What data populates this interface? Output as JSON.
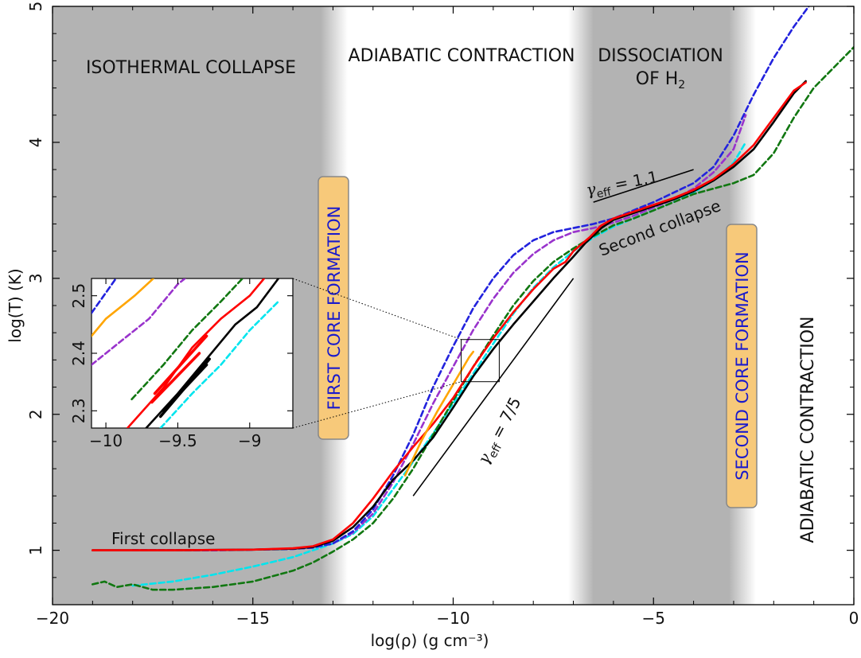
{
  "chart_data": {
    "type": "line",
    "xlabel": "log(ρ) (g cm⁻³)",
    "ylabel": "log(T) (K)",
    "xlim": [
      -20,
      0
    ],
    "ylim": [
      0.6,
      5
    ],
    "x_ticks": [
      "−20",
      "−15",
      "−10",
      "−5",
      "0"
    ],
    "y_ticks": [
      "1",
      "2",
      "3",
      "4",
      "5"
    ],
    "regions": [
      {
        "label": "ISOTHERMAL COLLAPSE",
        "from": -20,
        "to": -13.0,
        "shade": "gray"
      },
      {
        "label": "ADIABATIC CONTRACTION",
        "from": -13.0,
        "to": -7.0,
        "shade": "none"
      },
      {
        "label": "DISSOCIATION",
        "label2": "OF H",
        "label2_sub": "2",
        "from": -7.0,
        "to": -2.8,
        "shade": "gray"
      },
      {
        "label": "ADIABATIC CONTRACTION",
        "from": -2.8,
        "to": 0,
        "shade": "none",
        "orientation": "vertical"
      }
    ],
    "phase_boxes": [
      {
        "label": "FIRST CORE FORMATION",
        "x": -13.0,
        "y": 2.6
      },
      {
        "label": "SECOND CORE FORMATION",
        "x": -2.8,
        "y": 2.05
      }
    ],
    "annotations": {
      "first_collapse": "First collapse",
      "second_collapse": "Second collapse",
      "gamma_low_sym": "γ",
      "gamma_low_sub": "eff",
      "gamma_low_val": " = 7/5",
      "gamma_high_sym": "γ",
      "gamma_high_sub": "eff",
      "gamma_high_val": " = 1.1"
    },
    "reference_lines": [
      {
        "name": "slope-7/5",
        "points": [
          [
            -11.0,
            1.4
          ],
          [
            -7.0,
            3.0
          ]
        ]
      },
      {
        "name": "slope-1.1",
        "points": [
          [
            -6.5,
            3.56
          ],
          [
            -4.0,
            3.8
          ]
        ]
      }
    ],
    "series": [
      {
        "color": "#000000",
        "dash": false,
        "width": 2.6,
        "points": [
          [
            -19,
            1.0
          ],
          [
            -17,
            1.0
          ],
          [
            -15,
            1.005
          ],
          [
            -14,
            1.012
          ],
          [
            -13.5,
            1.025
          ],
          [
            -13,
            1.07
          ],
          [
            -12.5,
            1.17
          ],
          [
            -12,
            1.32
          ],
          [
            -11.5,
            1.52
          ],
          [
            -11,
            1.66
          ],
          [
            -10.5,
            1.83
          ],
          [
            -10,
            2.05
          ],
          [
            -9.5,
            2.28
          ],
          [
            -9,
            2.48
          ],
          [
            -8.5,
            2.66
          ],
          [
            -8,
            2.83
          ],
          [
            -7.5,
            3.0
          ],
          [
            -7,
            3.16
          ],
          [
            -6.7,
            3.26
          ],
          [
            -6.3,
            3.37
          ],
          [
            -6,
            3.43
          ],
          [
            -5.5,
            3.48
          ],
          [
            -5,
            3.53
          ],
          [
            -4.5,
            3.58
          ],
          [
            -4,
            3.64
          ],
          [
            -3.5,
            3.72
          ],
          [
            -3,
            3.82
          ],
          [
            -2.5,
            3.95
          ],
          [
            -2,
            4.15
          ],
          [
            -1.5,
            4.36
          ],
          [
            -1.2,
            4.45
          ]
        ]
      },
      {
        "color": "#ff0000",
        "dash": false,
        "width": 2.6,
        "points": [
          [
            -19,
            1.0
          ],
          [
            -17,
            1.0
          ],
          [
            -15,
            1.005
          ],
          [
            -14,
            1.015
          ],
          [
            -13.5,
            1.03
          ],
          [
            -13,
            1.08
          ],
          [
            -12.5,
            1.2
          ],
          [
            -12,
            1.38
          ],
          [
            -11.5,
            1.58
          ],
          [
            -11,
            1.76
          ],
          [
            -10.5,
            1.93
          ],
          [
            -10,
            2.12
          ],
          [
            -9.5,
            2.35
          ],
          [
            -9,
            2.56
          ],
          [
            -8.5,
            2.75
          ],
          [
            -8,
            2.92
          ],
          [
            -7.5,
            3.07
          ],
          [
            -7.2,
            3.12
          ],
          [
            -7,
            3.2
          ],
          [
            -6.6,
            3.3
          ],
          [
            -6.3,
            3.39
          ],
          [
            -6,
            3.44
          ],
          [
            -5.5,
            3.49
          ],
          [
            -5,
            3.54
          ],
          [
            -4.5,
            3.59
          ],
          [
            -4,
            3.65
          ],
          [
            -3.5,
            3.73
          ],
          [
            -3,
            3.84
          ],
          [
            -2.5,
            3.98
          ],
          [
            -2,
            4.18
          ],
          [
            -1.5,
            4.38
          ],
          [
            -1.2,
            4.44
          ]
        ]
      },
      {
        "color": "#2222dd",
        "dash": true,
        "width": 2.6,
        "points": [
          [
            -18,
            1.0
          ],
          [
            -16,
            1.0
          ],
          [
            -15,
            1.005
          ],
          [
            -14,
            1.01
          ],
          [
            -13.5,
            1.02
          ],
          [
            -13,
            1.05
          ],
          [
            -12.5,
            1.14
          ],
          [
            -12,
            1.3
          ],
          [
            -11.5,
            1.55
          ],
          [
            -11,
            1.85
          ],
          [
            -10.5,
            2.2
          ],
          [
            -10,
            2.5
          ],
          [
            -9.5,
            2.78
          ],
          [
            -9,
            3.0
          ],
          [
            -8.5,
            3.17
          ],
          [
            -8,
            3.28
          ],
          [
            -7.5,
            3.34
          ],
          [
            -7,
            3.37
          ],
          [
            -6.5,
            3.4
          ],
          [
            -6,
            3.44
          ],
          [
            -5,
            3.56
          ],
          [
            -4,
            3.7
          ],
          [
            -3.5,
            3.82
          ],
          [
            -3,
            4.05
          ],
          [
            -2.5,
            4.35
          ],
          [
            -2,
            4.62
          ],
          [
            -1.5,
            4.85
          ],
          [
            -1,
            5.05
          ]
        ]
      },
      {
        "color": "#9933cc",
        "dash": true,
        "width": 2.6,
        "points": [
          [
            -18,
            1.0
          ],
          [
            -16,
            1.0
          ],
          [
            -15,
            1.005
          ],
          [
            -14,
            1.01
          ],
          [
            -13.5,
            1.02
          ],
          [
            -13,
            1.05
          ],
          [
            -12.5,
            1.13
          ],
          [
            -12,
            1.27
          ],
          [
            -11.5,
            1.5
          ],
          [
            -11,
            1.78
          ],
          [
            -10.5,
            2.08
          ],
          [
            -10,
            2.35
          ],
          [
            -9.5,
            2.62
          ],
          [
            -9,
            2.85
          ],
          [
            -8.5,
            3.04
          ],
          [
            -8,
            3.18
          ],
          [
            -7.5,
            3.28
          ],
          [
            -7,
            3.34
          ],
          [
            -6.5,
            3.37
          ],
          [
            -6,
            3.41
          ],
          [
            -5.5,
            3.46
          ],
          [
            -5,
            3.52
          ],
          [
            -4.5,
            3.58
          ],
          [
            -4,
            3.66
          ],
          [
            -3.5,
            3.78
          ],
          [
            -3,
            3.95
          ],
          [
            -2.7,
            4.2
          ]
        ]
      },
      {
        "color": "#117711",
        "dash": true,
        "width": 2.6,
        "points": [
          [
            -19,
            0.75
          ],
          [
            -18.7,
            0.77
          ],
          [
            -18.4,
            0.73
          ],
          [
            -18,
            0.75
          ],
          [
            -17.5,
            0.71
          ],
          [
            -17,
            0.71
          ],
          [
            -16,
            0.73
          ],
          [
            -15,
            0.77
          ],
          [
            -14,
            0.85
          ],
          [
            -13.5,
            0.91
          ],
          [
            -13,
            0.99
          ],
          [
            -12.5,
            1.08
          ],
          [
            -12,
            1.2
          ],
          [
            -11.5,
            1.38
          ],
          [
            -11,
            1.6
          ],
          [
            -10.5,
            1.85
          ],
          [
            -10,
            2.1
          ],
          [
            -9.5,
            2.35
          ],
          [
            -9,
            2.58
          ],
          [
            -8.5,
            2.8
          ],
          [
            -8,
            2.98
          ],
          [
            -7.5,
            3.12
          ],
          [
            -7,
            3.22
          ],
          [
            -6.5,
            3.31
          ],
          [
            -6,
            3.39
          ],
          [
            -5.5,
            3.44
          ],
          [
            -5,
            3.5
          ],
          [
            -4.5,
            3.56
          ],
          [
            -4,
            3.62
          ],
          [
            -3.5,
            3.66
          ],
          [
            -3,
            3.7
          ],
          [
            -2.5,
            3.76
          ],
          [
            -2,
            3.92
          ],
          [
            -1.5,
            4.18
          ],
          [
            -1,
            4.4
          ],
          [
            -0.5,
            4.55
          ],
          [
            0,
            4.7
          ]
        ]
      },
      {
        "color": "#00e5ee",
        "dash": true,
        "width": 2.6,
        "points": [
          [
            -18,
            0.74
          ],
          [
            -17,
            0.77
          ],
          [
            -16,
            0.82
          ],
          [
            -15,
            0.88
          ],
          [
            -14,
            0.95
          ],
          [
            -13.5,
            1.0
          ],
          [
            -13,
            1.05
          ],
          [
            -12.5,
            1.12
          ],
          [
            -12,
            1.25
          ],
          [
            -11.5,
            1.45
          ],
          [
            -11,
            1.65
          ],
          [
            -10.5,
            1.86
          ],
          [
            -10,
            2.08
          ],
          [
            -9.5,
            2.3
          ],
          [
            -9,
            2.52
          ],
          [
            -8.5,
            2.74
          ],
          [
            -8,
            2.93
          ],
          [
            -7.5,
            3.08
          ],
          [
            -7,
            3.2
          ],
          [
            -6.5,
            3.3
          ],
          [
            -6,
            3.38
          ],
          [
            -5.5,
            3.44
          ],
          [
            -5,
            3.5
          ],
          [
            -4.5,
            3.56
          ],
          [
            -4,
            3.63
          ],
          [
            -3.5,
            3.72
          ],
          [
            -3,
            3.85
          ],
          [
            -2.7,
            4.0
          ]
        ]
      },
      {
        "color": "#ffa500",
        "dash": false,
        "width": 2.6,
        "points": [
          [
            -11.2,
            1.55
          ],
          [
            -10.8,
            1.8
          ],
          [
            -10.4,
            2.02
          ],
          [
            -10,
            2.22
          ],
          [
            -9.6,
            2.42
          ],
          [
            -9.5,
            2.46
          ]
        ]
      }
    ],
    "inset": {
      "xlim": [
        -10.1,
        -8.7
      ],
      "ylim": [
        2.27,
        2.53
      ],
      "x_ticks": [
        "−10",
        "−9.5",
        "−9"
      ],
      "y_ticks": [
        "2.3",
        "2.4",
        "2.5"
      ],
      "zoom_box": {
        "x": [
          -9.8,
          -8.85
        ],
        "y": [
          2.24,
          2.55
        ]
      },
      "series": [
        {
          "color": "#2222dd",
          "dash": true,
          "points": [
            [
              -10.1,
              2.47
            ],
            [
              -9.93,
              2.53
            ]
          ]
        },
        {
          "color": "#ffa500",
          "dash": false,
          "points": [
            [
              -10.1,
              2.43
            ],
            [
              -10.0,
              2.46
            ],
            [
              -9.8,
              2.5
            ],
            [
              -9.67,
              2.53
            ]
          ]
        },
        {
          "color": "#9933cc",
          "dash": true,
          "points": [
            [
              -10.1,
              2.38
            ],
            [
              -9.9,
              2.42
            ],
            [
              -9.7,
              2.46
            ],
            [
              -9.5,
              2.52
            ],
            [
              -9.45,
              2.53
            ]
          ]
        },
        {
          "color": "#117711",
          "dash": true,
          "points": [
            [
              -9.82,
              2.32
            ],
            [
              -9.6,
              2.38
            ],
            [
              -9.4,
              2.44
            ],
            [
              -9.2,
              2.49
            ],
            [
              -9.05,
              2.53
            ]
          ]
        },
        {
          "color": "#ff0000",
          "dash": false,
          "points": [
            [
              -9.85,
              2.27
            ],
            [
              -9.6,
              2.34
            ],
            [
              -9.4,
              2.41
            ],
            [
              -9.2,
              2.46
            ],
            [
              -9.0,
              2.5
            ],
            [
              -8.9,
              2.53
            ]
          ]
        },
        {
          "color": "#000000",
          "dash": false,
          "points": [
            [
              -9.72,
              2.27
            ],
            [
              -9.5,
              2.33
            ],
            [
              -9.3,
              2.39
            ],
            [
              -9.1,
              2.45
            ],
            [
              -8.95,
              2.48
            ],
            [
              -8.8,
              2.53
            ]
          ]
        },
        {
          "color": "#00e5ee",
          "dash": true,
          "points": [
            [
              -9.62,
              2.27
            ],
            [
              -9.4,
              2.33
            ],
            [
              -9.2,
              2.38
            ],
            [
              -9.0,
              2.44
            ],
            [
              -8.8,
              2.49
            ]
          ]
        },
        {
          "color": "#ff0000",
          "dash": false,
          "width": 3.5,
          "points": [
            [
              -9.68,
              2.315
            ],
            [
              -9.35,
              2.4
            ]
          ]
        },
        {
          "color": "#ff0000",
          "dash": false,
          "width": 3.5,
          "points": [
            [
              -9.66,
              2.33
            ],
            [
              -9.3,
              2.43
            ]
          ]
        },
        {
          "color": "#000000",
          "dash": false,
          "width": 3.5,
          "points": [
            [
              -9.6,
              2.3
            ],
            [
              -9.3,
              2.38
            ]
          ]
        },
        {
          "color": "#000000",
          "dash": false,
          "width": 3.5,
          "points": [
            [
              -9.62,
              2.29
            ],
            [
              -9.28,
              2.39
            ]
          ]
        }
      ]
    }
  },
  "colors": {
    "region_gray": "#b3b3b3",
    "box_fill": "#f7c97a",
    "box_stroke": "#888888"
  }
}
